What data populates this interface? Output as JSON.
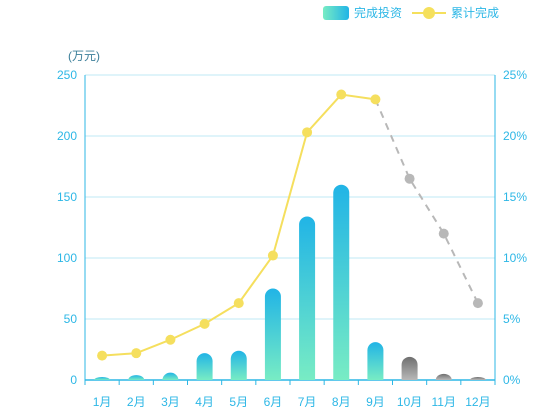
{
  "legend": {
    "bar_label": "完成投资",
    "line_label": "累计完成"
  },
  "unit_label": "(万元)",
  "chart_data": {
    "type": "bar",
    "categories": [
      "1月",
      "2月",
      "3月",
      "4月",
      "5月",
      "6月",
      "7月",
      "8月",
      "9月",
      "10月",
      "11月",
      "12月"
    ],
    "y_left": {
      "ylim": [
        0,
        250
      ],
      "ticks": [
        "0",
        "50",
        "100",
        "150",
        "200",
        "250"
      ]
    },
    "y_right": {
      "ylim": [
        0,
        25
      ],
      "ticks": [
        "0%",
        "5%",
        "10%",
        "15%",
        "20%",
        "25%"
      ]
    },
    "series": [
      {
        "type": "bar",
        "values": [
          1,
          4,
          6,
          22,
          24,
          75,
          134,
          160,
          31,
          19,
          5,
          2
        ],
        "colors_actual": [
          "#78ecc4",
          "#21b4e6"
        ],
        "colors_forecast": [
          "#b8b8b8",
          "#6f6f6f"
        ],
        "forecast_from_index": 9
      },
      {
        "type": "line",
        "axis": "right",
        "values": [
          2.0,
          2.2,
          3.3,
          4.6,
          6.3,
          10.2,
          20.3,
          23.4,
          23.0,
          16.5,
          12.0,
          6.3
        ],
        "color_actual": "#f5df5e",
        "color_forecast": "#b8b8b8",
        "forecast_from_index": 8
      }
    ],
    "grid": true
  }
}
